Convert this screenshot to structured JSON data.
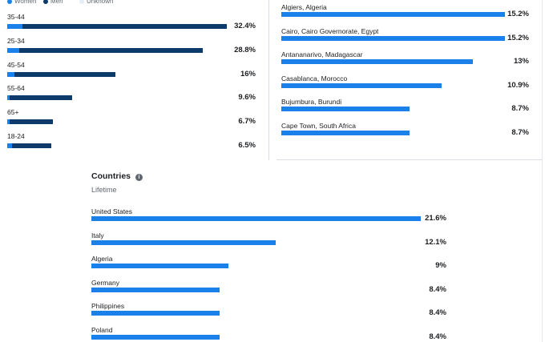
{
  "age_gender": {
    "legend": [
      "Women",
      "Men",
      "Unknown"
    ],
    "rows": [
      {
        "label": "35-44",
        "women": 2.2,
        "men": 30.2,
        "value_label": "32.4%"
      },
      {
        "label": "25-34",
        "women": 1.8,
        "men": 27.0,
        "value_label": "28.8%"
      },
      {
        "label": "45-54",
        "women": 1.1,
        "men": 14.9,
        "value_label": "16%"
      },
      {
        "label": "55-64",
        "women": 0.4,
        "men": 9.2,
        "value_label": "9.6%"
      },
      {
        "label": "65+",
        "women": 0.4,
        "men": 6.3,
        "value_label": "6.7%"
      },
      {
        "label": "18-24",
        "women": 0.7,
        "men": 5.8,
        "value_label": "6.5%"
      }
    ]
  },
  "cities": {
    "rows": [
      {
        "label": "Algiers, Algeria",
        "value": 15.2,
        "value_label": "15.2%"
      },
      {
        "label": "Cairo, Cairo Governorate, Egypt",
        "value": 15.2,
        "value_label": "15.2%"
      },
      {
        "label": "Antananarivo, Madagascar",
        "value": 13,
        "value_label": "13%"
      },
      {
        "label": "Casablanca, Morocco",
        "value": 10.9,
        "value_label": "10.9%"
      },
      {
        "label": "Bujumbura, Burundi",
        "value": 8.7,
        "value_label": "8.7%"
      },
      {
        "label": "Cape Town, South Africa",
        "value": 8.7,
        "value_label": "8.7%"
      }
    ]
  },
  "countries": {
    "title": "Countries",
    "subtitle": "Lifetime",
    "rows": [
      {
        "label": "United States",
        "value": 21.6,
        "value_label": "21.6%"
      },
      {
        "label": "Italy",
        "value": 12.1,
        "value_label": "12.1%"
      },
      {
        "label": "Algeria",
        "value": 9,
        "value_label": "9%"
      },
      {
        "label": "Germany",
        "value": 8.4,
        "value_label": "8.4%"
      },
      {
        "label": "Philippines",
        "value": 8.4,
        "value_label": "8.4%"
      },
      {
        "label": "Poland",
        "value": 8.4,
        "value_label": "8.4%"
      }
    ]
  }
}
